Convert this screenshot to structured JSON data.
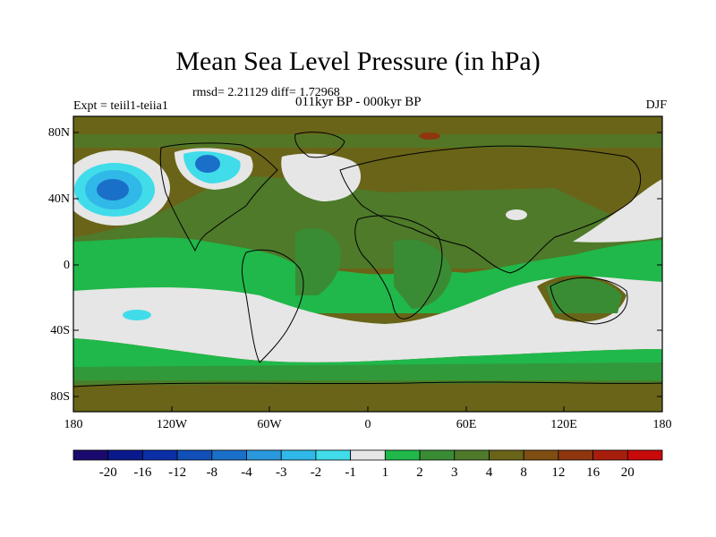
{
  "title": "Mean Sea Level Pressure (in hPa)",
  "stats": "rmsd= 2.21129 diff= 1.72968",
  "experiment": "Expt = teiil1-teiia1",
  "period": "011kyr BP - 000kyr BP",
  "season": "DJF",
  "lat_ticks": [
    "80N",
    "40N",
    "0",
    "40S",
    "80S"
  ],
  "lon_ticks": [
    "180",
    "120W",
    "60W",
    "0",
    "60E",
    "120E",
    "180"
  ],
  "colorbar": {
    "colors": [
      "#1a0a6e",
      "#0a1a8c",
      "#0a2ea6",
      "#1050b8",
      "#1a70c8",
      "#2a98dc",
      "#30b8e8",
      "#40dcea",
      "#e6e6e6",
      "#20b84a",
      "#3a8c34",
      "#4e7a2a",
      "#6a6418",
      "#7e4e12",
      "#8e360e",
      "#a81e0c",
      "#c80a0a"
    ],
    "labels": [
      "-20",
      "-16",
      "-12",
      "-8",
      "-4",
      "-3",
      "-2",
      "-1",
      "1",
      "2",
      "3",
      "4",
      "8",
      "12",
      "16",
      "20"
    ]
  }
}
